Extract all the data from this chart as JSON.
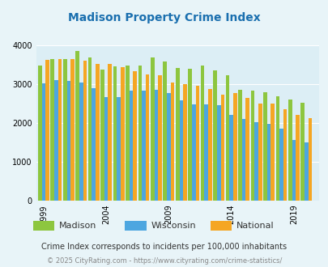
{
  "title": "Madison Property Crime Index",
  "title_color": "#1a6faf",
  "years": [
    1999,
    2000,
    2001,
    2002,
    2003,
    2004,
    2005,
    2006,
    2007,
    2008,
    2009,
    2010,
    2011,
    2012,
    2013,
    2014,
    2015,
    2016,
    2017,
    2018,
    2019,
    2020
  ],
  "madison": [
    3470,
    3650,
    3650,
    3860,
    3680,
    3370,
    3460,
    3470,
    3490,
    3680,
    3580,
    3410,
    3390,
    3470,
    3350,
    3230,
    2860,
    2830,
    2780,
    2680,
    2610,
    2520
  ],
  "wisconsin": [
    3010,
    3100,
    3080,
    3050,
    2900,
    2670,
    2660,
    2830,
    2840,
    2860,
    2770,
    2590,
    2480,
    2470,
    2460,
    2210,
    2100,
    2020,
    1980,
    1840,
    1560,
    1490
  ],
  "national": [
    3620,
    3640,
    3650,
    3600,
    3530,
    3530,
    3440,
    3340,
    3260,
    3230,
    3050,
    2990,
    2950,
    2870,
    2730,
    2770,
    2650,
    2500,
    2490,
    2360,
    2200,
    2130
  ],
  "madison_color": "#8dc63f",
  "wisconsin_color": "#4da6e0",
  "national_color": "#f5a623",
  "bg_color": "#e8f4f8",
  "plot_bg": "#dceef5",
  "ylim": [
    0,
    4000
  ],
  "yticks": [
    0,
    1000,
    2000,
    3000,
    4000
  ],
  "xtick_labels": [
    "1999",
    "2004",
    "2009",
    "2014",
    "2019"
  ],
  "xtick_positions": [
    1999,
    2004,
    2009,
    2014,
    2019
  ],
  "subtitle": "Crime Index corresponds to incidents per 100,000 inhabitants",
  "subtitle_color": "#333333",
  "footer": "© 2025 CityRating.com - https://www.cityrating.com/crime-statistics/",
  "footer_color": "#888888",
  "legend_labels": [
    "Madison",
    "Wisconsin",
    "National"
  ],
  "bar_width": 0.3
}
